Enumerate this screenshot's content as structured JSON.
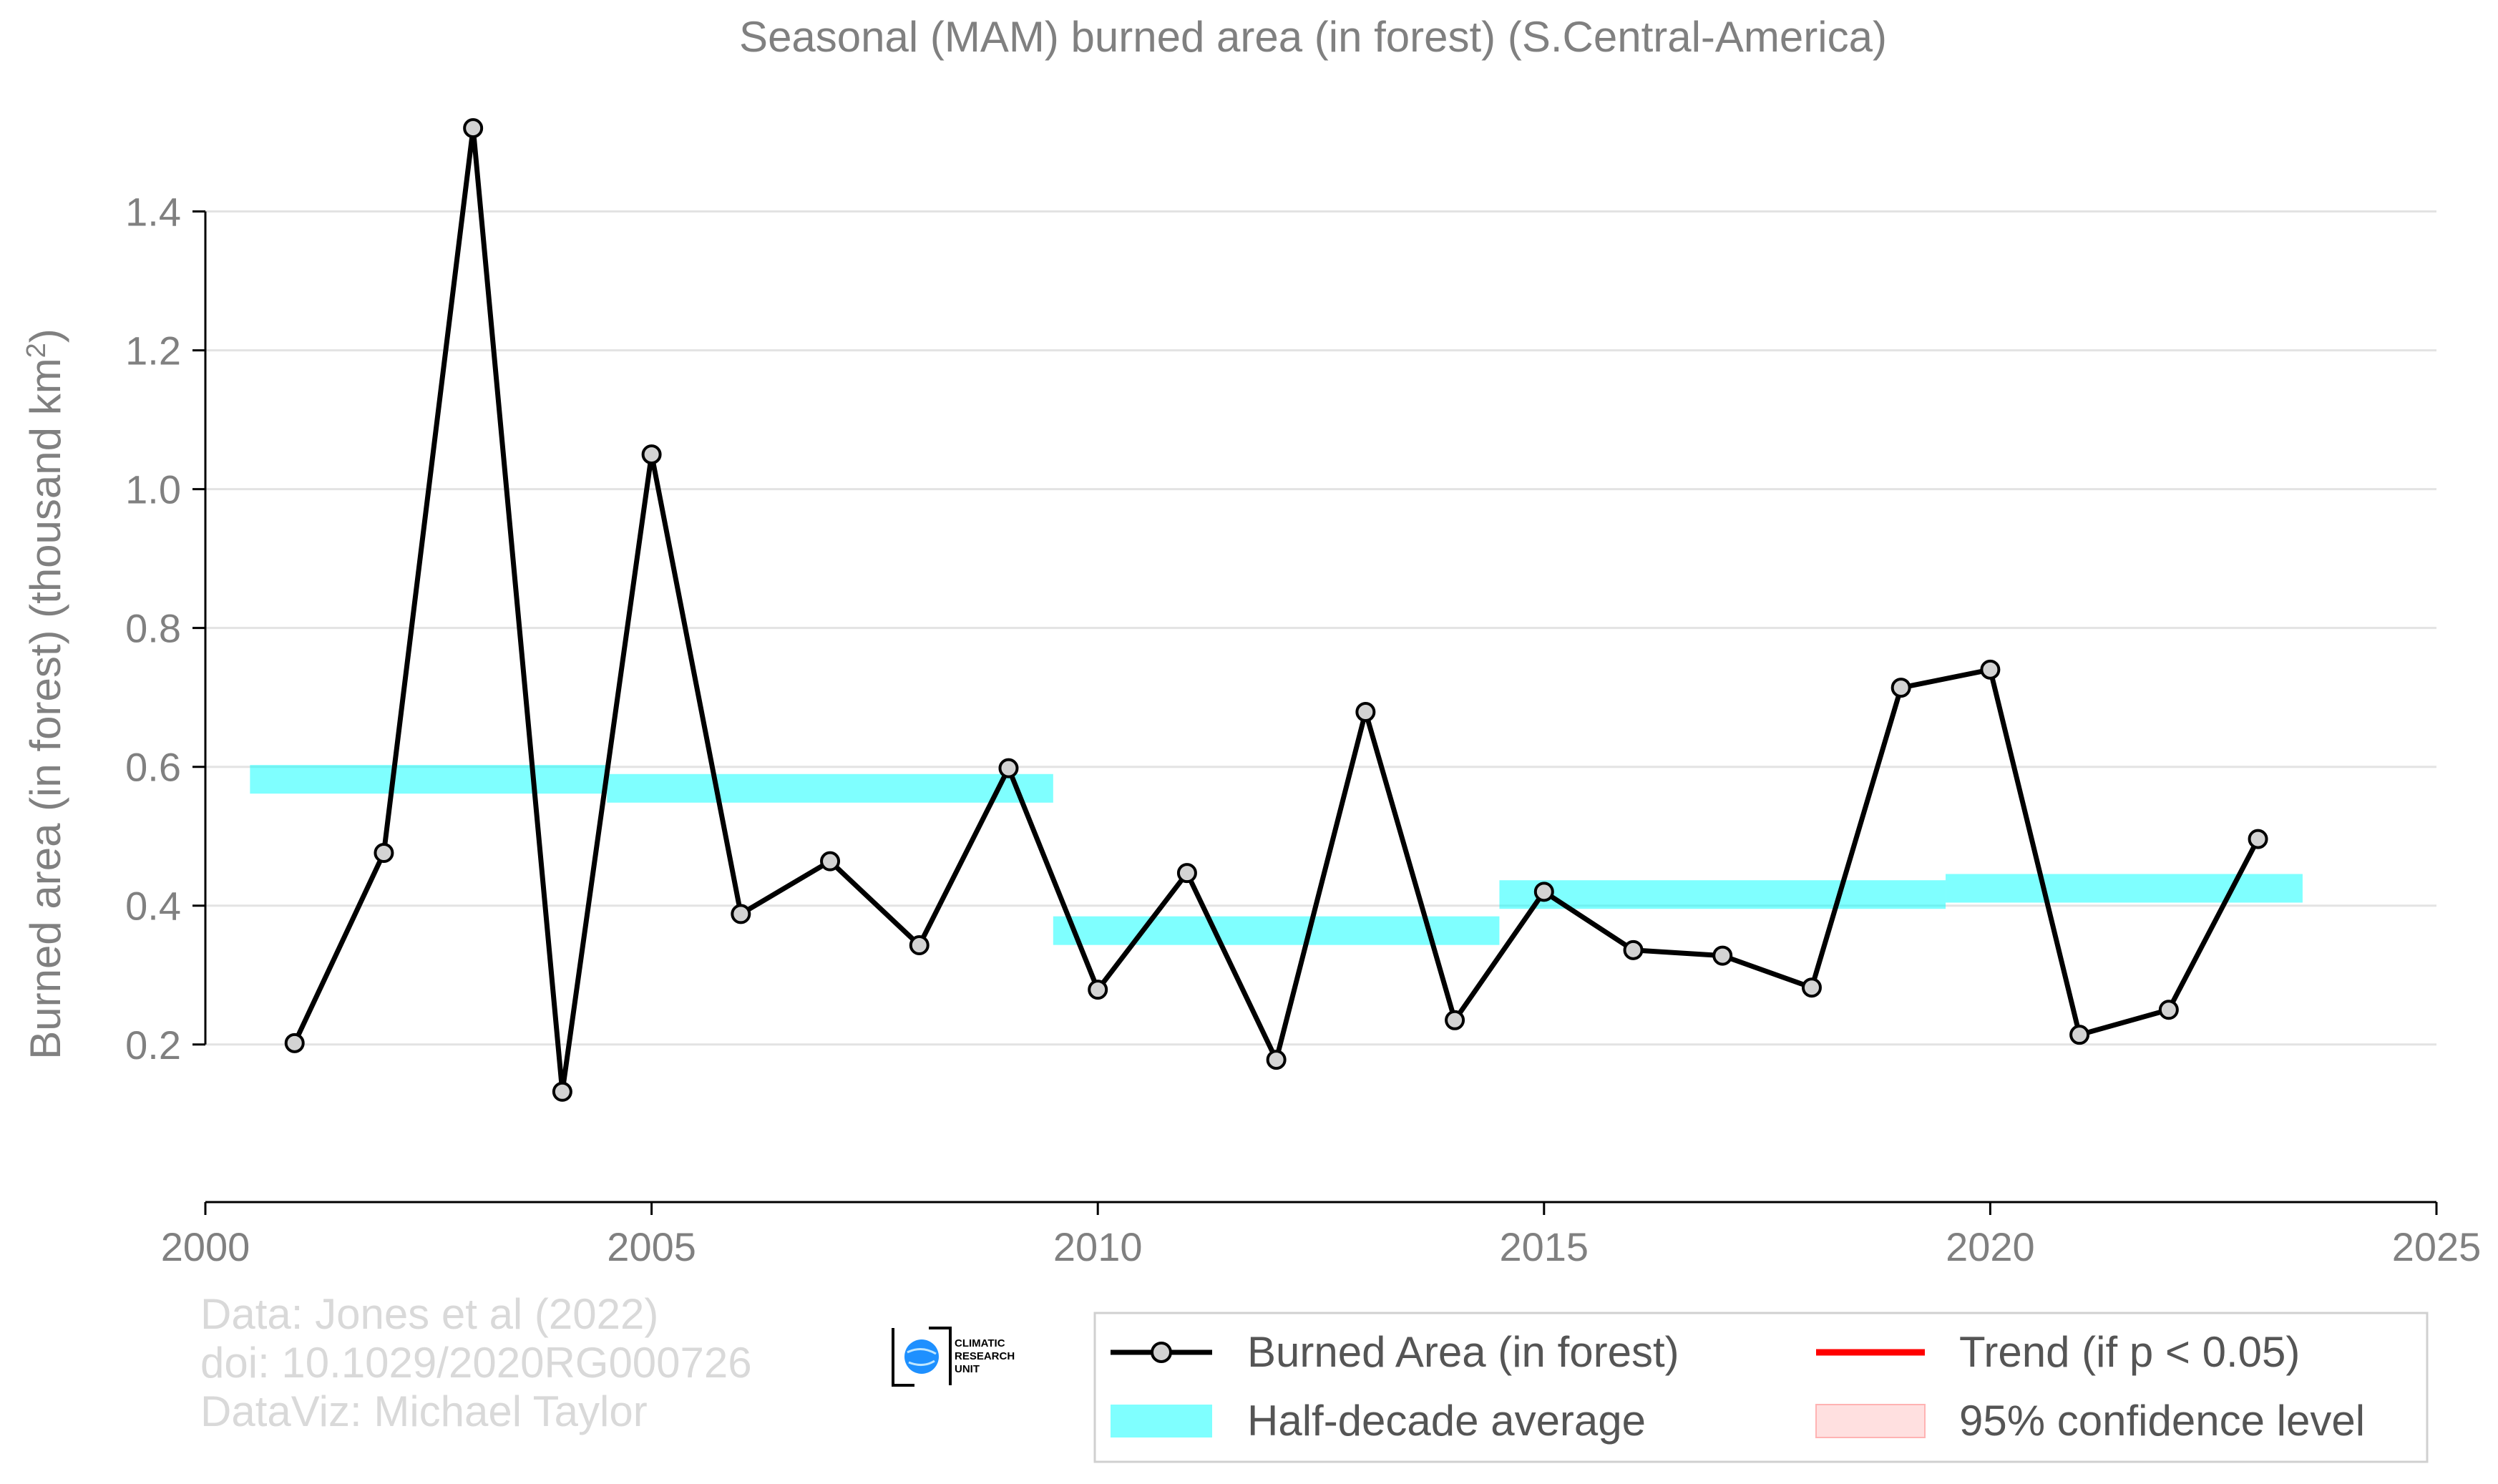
{
  "chart_data": {
    "type": "line",
    "title": "Seasonal (MAM) burned area (in forest) (S.Central-America)",
    "ylabel_main": "Burned area (in forest) (thousand km",
    "ylabel_sup": "2",
    "ylabel_end": ")",
    "xlabel": "",
    "xlim": [
      2000,
      2025
    ],
    "ylim": [
      0.04,
      1.55
    ],
    "x_ticks": [
      2000,
      2005,
      2010,
      2015,
      2020,
      2025
    ],
    "x_tick_labels": [
      "2000",
      "2005",
      "2010",
      "2015",
      "2020",
      "2025"
    ],
    "y_ticks": [
      0.2,
      0.4,
      0.6,
      0.8,
      1.0,
      1.2,
      1.4
    ],
    "y_tick_labels": [
      "0.2",
      "0.4",
      "0.6",
      "0.8",
      "1.0",
      "1.2",
      "1.4"
    ],
    "grid": true,
    "series": [
      {
        "name": "Burned Area (in forest)",
        "color": "#000000",
        "marker_fill": "#d3d3d3",
        "x": [
          2001,
          2002,
          2003,
          2004,
          2005,
          2006,
          2007,
          2008,
          2009,
          2010,
          2011,
          2012,
          2013,
          2014,
          2015,
          2016,
          2017,
          2018,
          2019,
          2020,
          2021,
          2022,
          2023
        ],
        "y": [
          0.202,
          0.476,
          1.52,
          0.132,
          1.05,
          0.388,
          0.464,
          0.343,
          0.598,
          0.279,
          0.447,
          0.178,
          0.679,
          0.235,
          0.42,
          0.336,
          0.328,
          0.282,
          0.714,
          0.74,
          0.214,
          0.25,
          0.496
        ]
      }
    ],
    "half_decade_averages": {
      "name": "Half-decade average",
      "color": "#00ffff",
      "segments": [
        {
          "x0": 2000.5,
          "x1": 2004.5,
          "y": 0.582
        },
        {
          "x0": 2004.5,
          "x1": 2009.5,
          "y": 0.569
        },
        {
          "x0": 2009.5,
          "x1": 2014.5,
          "y": 0.364
        },
        {
          "x0": 2014.5,
          "x1": 2019.5,
          "y": 0.416
        },
        {
          "x0": 2019.5,
          "x1": 2023.5,
          "y": 0.425
        }
      ]
    },
    "legend": {
      "placement": "bottom-right",
      "items": [
        {
          "label": "Burned Area (in forest)",
          "kind": "line-marker",
          "color": "#000000"
        },
        {
          "label": "Trend (if p < 0.05)",
          "kind": "line",
          "color": "#ff0000"
        },
        {
          "label": "Half-decade average",
          "kind": "band",
          "color": "#00ffff"
        },
        {
          "label": "95% confidence level",
          "kind": "band",
          "color": "#ffcccc"
        }
      ]
    }
  },
  "credits": {
    "line1": "Data: Jones et al (2022)",
    "line2": "doi: 10.1029/2020RG000726",
    "line3": "DataViz: Michael Taylor"
  },
  "logo": {
    "line1": "CLIMATIC",
    "line2": "RESEARCH",
    "line3": "UNIT"
  }
}
